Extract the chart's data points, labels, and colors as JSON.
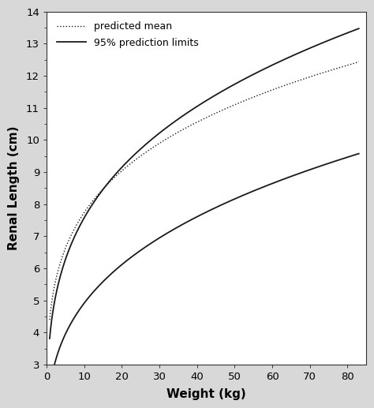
{
  "xlabel": "Weight (kg)",
  "ylabel": "Renal Length (cm)",
  "xlim": [
    0,
    85
  ],
  "ylim": [
    3,
    14
  ],
  "xticks": [
    0,
    10,
    20,
    30,
    40,
    50,
    60,
    70,
    80
  ],
  "yticks": [
    3,
    4,
    5,
    6,
    7,
    8,
    9,
    10,
    11,
    12,
    13,
    14
  ],
  "background_color": "#d8d8d8",
  "plot_bg_color": "#ffffff",
  "line_color": "#1a1a1a",
  "legend_dotted_label": "predicted mean",
  "legend_solid_label": "95% prediction limits",
  "weight_start": 0.8,
  "weight_end": 83,
  "upper_a": 4.05,
  "upper_b": 0.272,
  "mean_a": 4.62,
  "mean_b": 0.224,
  "lower_a": 2.38,
  "lower_b": 0.315
}
